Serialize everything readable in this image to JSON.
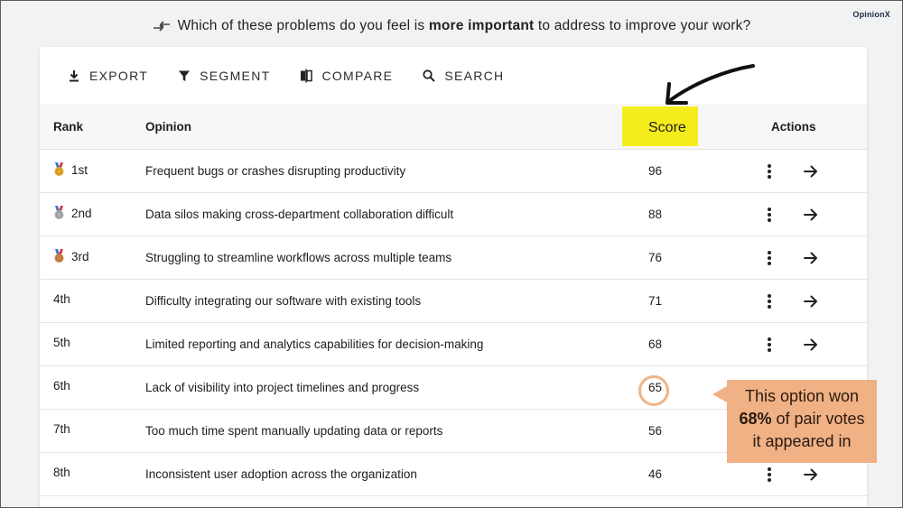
{
  "brand": "OpinionX",
  "question": {
    "before": "Which of these problems do you feel is ",
    "emphasis": "more important",
    "after": " to address to improve your work?"
  },
  "toolbar": [
    {
      "label": "EXPORT",
      "icon": "download-icon"
    },
    {
      "label": "SEGMENT",
      "icon": "filter-icon"
    },
    {
      "label": "COMPARE",
      "icon": "compare-icon"
    },
    {
      "label": "SEARCH",
      "icon": "search-icon"
    }
  ],
  "table": {
    "headers": {
      "rank": "Rank",
      "opinion": "Opinion",
      "score": "Score",
      "actions": "Actions"
    },
    "rows": [
      {
        "rank": "1st",
        "opinion": "Frequent bugs or crashes disrupting productivity",
        "score": "96",
        "medal": "gold"
      },
      {
        "rank": "2nd",
        "opinion": "Data silos making cross-department collaboration difficult",
        "score": "88",
        "medal": "silver"
      },
      {
        "rank": "3rd",
        "opinion": "Struggling to streamline workflows across multiple teams",
        "score": "76",
        "medal": "bronze"
      },
      {
        "rank": "4th",
        "opinion": "Difficulty integrating our software with existing tools",
        "score": "71",
        "medal": ""
      },
      {
        "rank": "5th",
        "opinion": "Limited reporting and analytics capabilities for decision-making",
        "score": "68",
        "medal": ""
      },
      {
        "rank": "6th",
        "opinion": "Lack of visibility into project timelines and progress",
        "score": "65",
        "medal": ""
      },
      {
        "rank": "7th",
        "opinion": "Too much time spent manually updating data or reports",
        "score": "56",
        "medal": ""
      },
      {
        "rank": "8th",
        "opinion": "Inconsistent user adoption across the organization",
        "score": "46",
        "medal": ""
      }
    ]
  },
  "callout": {
    "line1": "This option won",
    "bold": "68%",
    "line2_rest": " of pair votes",
    "line3": "it appeared in"
  },
  "colors": {
    "highlight": "#f4ec1c",
    "callout": "#f0b185",
    "gold": "#e3a92b",
    "silver": "#a9aeb5",
    "bronze": "#c98446"
  }
}
